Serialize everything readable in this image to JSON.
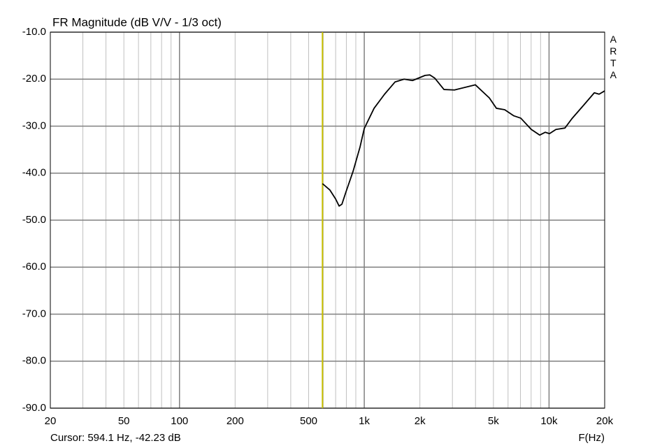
{
  "chart_data": {
    "type": "line",
    "title": "FR Magnitude (dB V/V - 1/3 oct)",
    "side_label": "ARTA",
    "x_label": "F(Hz)",
    "x_log": true,
    "grid": true,
    "xlim": [
      20,
      20000
    ],
    "xticks": [
      20,
      50,
      100,
      200,
      500,
      {
        "value": 1000,
        "label": "1k"
      },
      {
        "value": 2000,
        "label": "2k"
      },
      {
        "value": 5000,
        "label": "5k"
      },
      {
        "value": 10000,
        "label": "10k"
      },
      {
        "value": 20000,
        "label": "20k"
      }
    ],
    "x_minor_grid": [
      30,
      40,
      60,
      70,
      80,
      90,
      300,
      400,
      600,
      700,
      800,
      900,
      3000,
      4000,
      6000,
      7000,
      8000,
      9000
    ],
    "ylim": [
      -90,
      -10
    ],
    "yticks": [
      {
        "value": -90,
        "label": "-90.0"
      },
      {
        "value": -80,
        "label": "-80.0"
      },
      {
        "value": -70,
        "label": "-70.0"
      },
      {
        "value": -60,
        "label": "-60.0"
      },
      {
        "value": -50,
        "label": "-50.0"
      },
      {
        "value": -40,
        "label": "-40.0"
      },
      {
        "value": -30,
        "label": "-30.0"
      },
      {
        "value": -20,
        "label": "-20.0"
      },
      {
        "value": -10,
        "label": "-10.0"
      }
    ],
    "cursor": {
      "x": 594.1,
      "y": -42.23,
      "label": "Cursor: 594.1 Hz, -42.23 dB",
      "color": "#c8c000"
    },
    "x": [
      594.1,
      652,
      700,
      731,
      757,
      796,
      870,
      949,
      1000,
      1130,
      1288,
      1467,
      1644,
      1824,
      2134,
      2266,
      2410,
      2700,
      3076,
      3990,
      4752,
      5190,
      5756,
      6446,
      7032,
      8018,
      8896,
      9544,
      10050,
      10890,
      12190,
      13300,
      15420,
      17580,
      18660,
      20000
    ],
    "series": [
      {
        "color": "#000000",
        "values": [
          -42.23,
          -43.6,
          -45.5,
          -47.0,
          -46.6,
          -44.0,
          -39.6,
          -34.4,
          -30.5,
          -26.2,
          -23.2,
          -20.6,
          -20.0,
          -20.3,
          -19.2,
          -19.1,
          -19.8,
          -22.2,
          -22.3,
          -21.2,
          -24.0,
          -26.2,
          -26.5,
          -27.8,
          -28.3,
          -30.7,
          -31.9,
          -31.3,
          -31.6,
          -30.7,
          -30.4,
          -28.4,
          -25.5,
          -22.9,
          -23.2,
          -22.5
        ]
      }
    ]
  }
}
